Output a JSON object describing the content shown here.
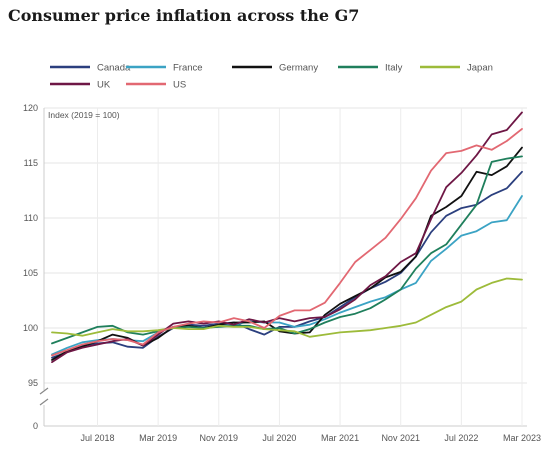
{
  "chart_data": {
    "type": "line",
    "title": "Consumer price inflation across the G7",
    "ylabel": "Index (2019 = 100)",
    "xlabel": "",
    "ylim": [
      95,
      120
    ],
    "y_zero_label": "0",
    "y_axis_break": true,
    "y_ticks": [
      95,
      100,
      105,
      110,
      115,
      120
    ],
    "x_tick_labels": [
      "Jul 2018",
      "Mar 2019",
      "Nov 2019",
      "Jul 2020",
      "Mar 2021",
      "Nov 2021",
      "Jul 2022",
      "Mar 2023"
    ],
    "x_tick_positions": [
      "2018-07",
      "2019-03",
      "2019-11",
      "2020-07",
      "2021-03",
      "2021-11",
      "2022-07",
      "2023-03"
    ],
    "x_start": "2018-01",
    "x_end": "2023-03",
    "grid": true,
    "legend_placement": "top",
    "series": [
      {
        "name": "Canada",
        "color": "#2b3f7e",
        "x": [
          "2018-01",
          "2018-03",
          "2018-05",
          "2018-07",
          "2018-09",
          "2018-11",
          "2019-01",
          "2019-03",
          "2019-05",
          "2019-07",
          "2019-09",
          "2019-11",
          "2020-01",
          "2020-03",
          "2020-05",
          "2020-07",
          "2020-09",
          "2020-11",
          "2021-01",
          "2021-03",
          "2021-05",
          "2021-07",
          "2021-09",
          "2021-11",
          "2022-01",
          "2022-03",
          "2022-05",
          "2022-07",
          "2022-09",
          "2022-11",
          "2023-01",
          "2023-03"
        ],
        "values": [
          97.3,
          97.8,
          98.4,
          98.6,
          98.7,
          98.3,
          98.2,
          99.2,
          100.0,
          100.3,
          100.2,
          100.4,
          100.5,
          99.9,
          99.4,
          100.1,
          100.1,
          100.6,
          101.0,
          101.9,
          102.8,
          103.6,
          104.2,
          105.0,
          106.5,
          108.7,
          110.2,
          110.9,
          111.2,
          112.1,
          112.7,
          114.2
        ]
      },
      {
        "name": "France",
        "color": "#3ba3c4",
        "x": [
          "2018-01",
          "2018-03",
          "2018-05",
          "2018-07",
          "2018-09",
          "2018-11",
          "2019-01",
          "2019-03",
          "2019-05",
          "2019-07",
          "2019-09",
          "2019-11",
          "2020-01",
          "2020-03",
          "2020-05",
          "2020-07",
          "2020-09",
          "2020-11",
          "2021-01",
          "2021-03",
          "2021-05",
          "2021-07",
          "2021-09",
          "2021-11",
          "2022-01",
          "2022-03",
          "2022-05",
          "2022-07",
          "2022-09",
          "2022-11",
          "2023-01",
          "2023-03"
        ],
        "values": [
          97.6,
          98.2,
          98.7,
          98.9,
          99.0,
          98.9,
          98.8,
          99.6,
          100.1,
          100.2,
          100.0,
          100.3,
          100.3,
          100.6,
          100.5,
          100.5,
          100.1,
          100.3,
          100.8,
          101.4,
          101.9,
          102.4,
          102.8,
          103.5,
          104.1,
          106.1,
          107.2,
          108.4,
          108.8,
          109.6,
          109.8,
          112.0
        ]
      },
      {
        "name": "Germany",
        "color": "#111111",
        "x": [
          "2018-01",
          "2018-03",
          "2018-05",
          "2018-07",
          "2018-09",
          "2018-11",
          "2019-01",
          "2019-03",
          "2019-05",
          "2019-07",
          "2019-09",
          "2019-11",
          "2020-01",
          "2020-03",
          "2020-05",
          "2020-07",
          "2020-09",
          "2020-11",
          "2021-01",
          "2021-03",
          "2021-05",
          "2021-07",
          "2021-09",
          "2021-11",
          "2022-01",
          "2022-03",
          "2022-05",
          "2022-07",
          "2022-09",
          "2022-11",
          "2023-01",
          "2023-03"
        ],
        "values": [
          97.1,
          97.9,
          98.3,
          98.8,
          99.4,
          99.1,
          98.4,
          99.1,
          100.1,
          100.2,
          100.0,
          100.3,
          100.5,
          100.5,
          100.6,
          99.7,
          99.5,
          99.6,
          101.2,
          102.2,
          102.9,
          103.6,
          104.6,
          105.1,
          106.5,
          110.2,
          111.0,
          112.0,
          114.2,
          113.9,
          114.7,
          116.4
        ]
      },
      {
        "name": "Italy",
        "color": "#1f7f5c",
        "x": [
          "2018-01",
          "2018-03",
          "2018-05",
          "2018-07",
          "2018-09",
          "2018-11",
          "2019-01",
          "2019-03",
          "2019-05",
          "2019-07",
          "2019-09",
          "2019-11",
          "2020-01",
          "2020-03",
          "2020-05",
          "2020-07",
          "2020-09",
          "2020-11",
          "2021-01",
          "2021-03",
          "2021-05",
          "2021-07",
          "2021-09",
          "2021-11",
          "2022-01",
          "2022-03",
          "2022-05",
          "2022-07",
          "2022-09",
          "2022-11",
          "2023-01",
          "2023-03"
        ],
        "values": [
          98.6,
          99.1,
          99.6,
          100.1,
          100.2,
          99.6,
          99.4,
          99.7,
          100.0,
          100.1,
          100.0,
          100.1,
          100.2,
          100.2,
          99.9,
          100.0,
          99.5,
          99.9,
          100.5,
          101.0,
          101.3,
          101.8,
          102.6,
          103.5,
          105.4,
          106.8,
          107.6,
          109.4,
          111.2,
          115.1,
          115.4,
          115.6
        ]
      },
      {
        "name": "Japan",
        "color": "#9dbb3a",
        "x": [
          "2018-01",
          "2018-03",
          "2018-05",
          "2018-07",
          "2018-09",
          "2018-11",
          "2019-01",
          "2019-03",
          "2019-05",
          "2019-07",
          "2019-09",
          "2019-11",
          "2020-01",
          "2020-03",
          "2020-05",
          "2020-07",
          "2020-09",
          "2020-11",
          "2021-01",
          "2021-03",
          "2021-05",
          "2021-07",
          "2021-09",
          "2021-11",
          "2022-01",
          "2022-03",
          "2022-05",
          "2022-07",
          "2022-09",
          "2022-11",
          "2023-01",
          "2023-03"
        ],
        "values": [
          99.6,
          99.5,
          99.3,
          99.6,
          99.9,
          99.7,
          99.7,
          99.8,
          100.0,
          99.9,
          99.9,
          100.2,
          100.1,
          100.1,
          99.9,
          99.8,
          99.7,
          99.2,
          99.4,
          99.6,
          99.7,
          99.8,
          100.0,
          100.2,
          100.5,
          101.2,
          101.9,
          102.4,
          103.5,
          104.1,
          104.5,
          104.4
        ]
      },
      {
        "name": "UK",
        "color": "#6e1745",
        "x": [
          "2018-01",
          "2018-03",
          "2018-05",
          "2018-07",
          "2018-09",
          "2018-11",
          "2019-01",
          "2019-03",
          "2019-05",
          "2019-07",
          "2019-09",
          "2019-11",
          "2020-01",
          "2020-03",
          "2020-05",
          "2020-07",
          "2020-09",
          "2020-11",
          "2021-01",
          "2021-03",
          "2021-05",
          "2021-07",
          "2021-09",
          "2021-11",
          "2022-01",
          "2022-03",
          "2022-05",
          "2022-07",
          "2022-09",
          "2022-11",
          "2023-01",
          "2023-03"
        ],
        "values": [
          96.9,
          97.8,
          98.2,
          98.5,
          98.8,
          99.0,
          98.4,
          99.4,
          100.4,
          100.6,
          100.4,
          100.6,
          100.3,
          100.8,
          100.5,
          100.9,
          100.6,
          100.9,
          101.0,
          101.7,
          102.6,
          103.9,
          104.7,
          106.0,
          106.8,
          109.9,
          112.8,
          114.1,
          115.7,
          117.6,
          118.0,
          119.6
        ]
      },
      {
        "name": "US",
        "color": "#e26872",
        "x": [
          "2018-01",
          "2018-03",
          "2018-05",
          "2018-07",
          "2018-09",
          "2018-11",
          "2019-01",
          "2019-03",
          "2019-05",
          "2019-07",
          "2019-09",
          "2019-11",
          "2020-01",
          "2020-03",
          "2020-05",
          "2020-07",
          "2020-09",
          "2020-11",
          "2021-01",
          "2021-03",
          "2021-05",
          "2021-07",
          "2021-09",
          "2021-11",
          "2022-01",
          "2022-03",
          "2022-05",
          "2022-07",
          "2022-09",
          "2022-11",
          "2023-01",
          "2023-03"
        ],
        "values": [
          97.5,
          98.0,
          98.5,
          98.8,
          99.0,
          98.9,
          98.5,
          99.6,
          100.1,
          100.4,
          100.6,
          100.5,
          100.9,
          100.6,
          100.0,
          101.1,
          101.6,
          101.6,
          102.3,
          104.1,
          106.0,
          107.1,
          108.2,
          109.9,
          111.8,
          114.3,
          115.9,
          116.1,
          116.6,
          116.2,
          117.0,
          118.1
        ]
      }
    ]
  }
}
